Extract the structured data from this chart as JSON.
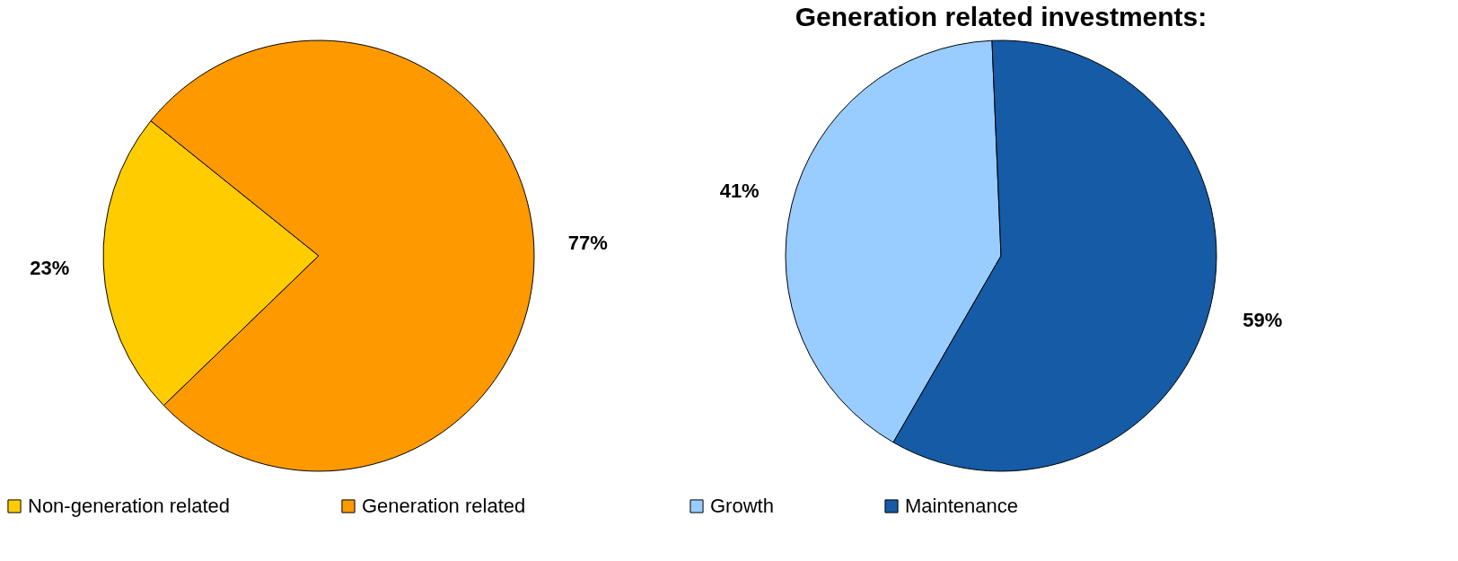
{
  "chart_data": [
    {
      "type": "pie",
      "categories": [
        "Non-generation related",
        "Generation related"
      ],
      "values": [
        23,
        77
      ],
      "colors": [
        "#ffcc00",
        "#ff9900"
      ],
      "value_labels": [
        "23%",
        "77%"
      ],
      "legend": "bottom"
    },
    {
      "type": "pie",
      "title": "Generation related investments:",
      "categories": [
        "Growth",
        "Maintenance"
      ],
      "values": [
        41,
        59
      ],
      "colors": [
        "#99ccff",
        "#155ba6"
      ],
      "value_labels": [
        "41%",
        "59%"
      ],
      "legend": "bottom"
    }
  ]
}
